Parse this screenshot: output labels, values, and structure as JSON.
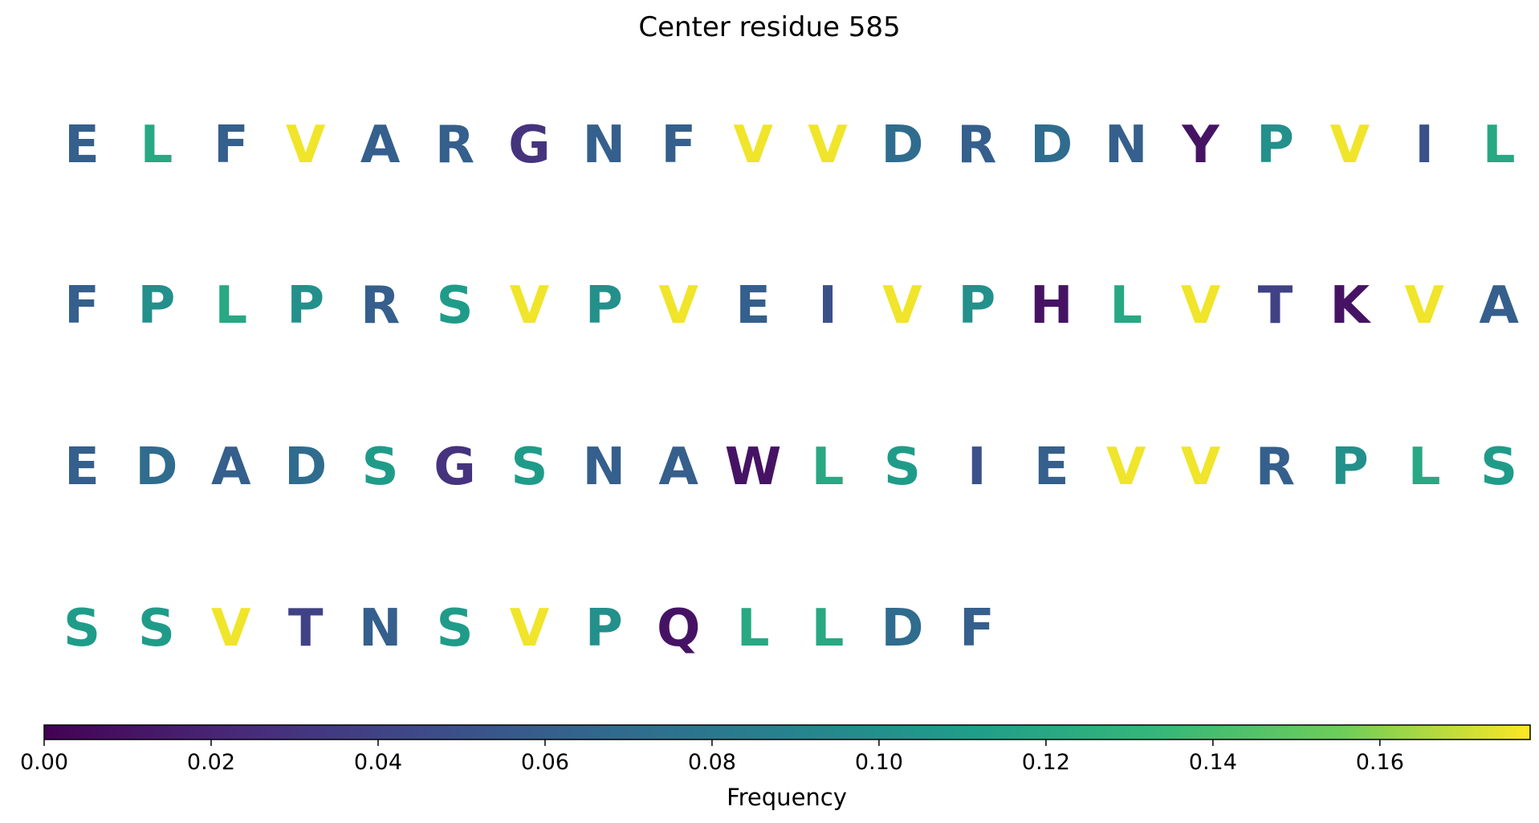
{
  "chart_data": {
    "type": "heatmap",
    "title": "Center residue 585",
    "rows": [
      {
        "letters": [
          "E",
          "L",
          "F",
          "V",
          "A",
          "R",
          "G",
          "N",
          "F",
          "V",
          "V",
          "D",
          "R",
          "D",
          "N",
          "Y",
          "P",
          "V",
          "I",
          "L"
        ],
        "values": [
          0.06,
          0.12,
          0.06,
          0.176,
          0.06,
          0.06,
          0.03,
          0.06,
          0.06,
          0.176,
          0.176,
          0.07,
          0.06,
          0.07,
          0.06,
          0.01,
          0.1,
          0.176,
          0.05,
          0.12
        ]
      },
      {
        "letters": [
          "F",
          "P",
          "L",
          "P",
          "R",
          "S",
          "V",
          "P",
          "V",
          "E",
          "I",
          "V",
          "P",
          "H",
          "L",
          "V",
          "T",
          "K",
          "V",
          "A"
        ],
        "values": [
          0.06,
          0.1,
          0.12,
          0.1,
          0.06,
          0.11,
          0.176,
          0.1,
          0.176,
          0.06,
          0.05,
          0.176,
          0.1,
          0.01,
          0.12,
          0.176,
          0.04,
          0.01,
          0.176,
          0.06
        ]
      },
      {
        "letters": [
          "E",
          "D",
          "A",
          "D",
          "S",
          "G",
          "S",
          "N",
          "A",
          "W",
          "L",
          "S",
          "I",
          "E",
          "V",
          "V",
          "R",
          "P",
          "L",
          "S"
        ],
        "values": [
          0.06,
          0.07,
          0.06,
          0.07,
          0.11,
          0.03,
          0.11,
          0.06,
          0.06,
          0.01,
          0.12,
          0.11,
          0.05,
          0.06,
          0.176,
          0.176,
          0.06,
          0.1,
          0.12,
          0.11
        ]
      },
      {
        "letters": [
          "S",
          "S",
          "V",
          "T",
          "N",
          "S",
          "V",
          "P",
          "Q",
          "L",
          "L",
          "D",
          "F"
        ],
        "values": [
          0.11,
          0.11,
          0.176,
          0.04,
          0.06,
          0.11,
          0.176,
          0.1,
          0.01,
          0.12,
          0.12,
          0.07,
          0.06
        ]
      }
    ],
    "colorbar": {
      "colormap": "viridis",
      "vmin": 0.0,
      "vmax": 0.178,
      "ticks": [
        0.0,
        0.02,
        0.04,
        0.06,
        0.08,
        0.1,
        0.12,
        0.14,
        0.16
      ],
      "tick_labels": [
        "0.00",
        "0.02",
        "0.04",
        "0.06",
        "0.08",
        "0.10",
        "0.12",
        "0.14",
        "0.16"
      ],
      "label": "Frequency"
    }
  }
}
